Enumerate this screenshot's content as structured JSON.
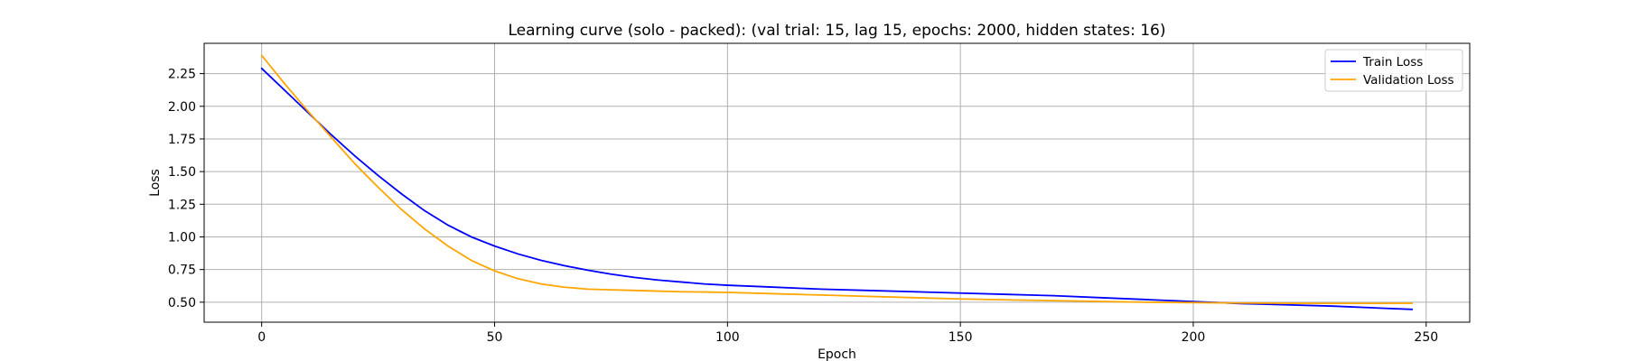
{
  "chart_data": {
    "type": "line",
    "title": "Learning curve (solo - packed): (val trial: 15, lag 15, epochs: 2000, hidden states: 16)",
    "xlabel": "Epoch",
    "ylabel": "Loss",
    "xlim": [
      -12.35,
      259.35
    ],
    "ylim": [
      0.347,
      2.482
    ],
    "xticks": [
      0,
      50,
      100,
      150,
      200,
      250
    ],
    "xtick_labels": [
      "0",
      "50",
      "100",
      "150",
      "200",
      "250"
    ],
    "yticks": [
      0.5,
      0.75,
      1.0,
      1.25,
      1.5,
      1.75,
      2.0,
      2.25
    ],
    "ytick_labels": [
      "0.50",
      "0.75",
      "1.00",
      "1.25",
      "1.50",
      "1.75",
      "2.00",
      "2.25"
    ],
    "grid": true,
    "legend_position": "top-right",
    "series": [
      {
        "name": "Train Loss",
        "color": "#0000ff",
        "x": [
          0,
          5,
          10,
          15,
          20,
          25,
          30,
          35,
          40,
          45,
          50,
          55,
          60,
          65,
          70,
          75,
          80,
          85,
          90,
          95,
          100,
          110,
          120,
          130,
          140,
          150,
          160,
          170,
          180,
          190,
          200,
          210,
          220,
          230,
          240,
          247
        ],
        "y": [
          2.29,
          2.12,
          1.95,
          1.78,
          1.62,
          1.47,
          1.33,
          1.2,
          1.09,
          1.0,
          0.93,
          0.87,
          0.82,
          0.78,
          0.745,
          0.715,
          0.69,
          0.67,
          0.655,
          0.64,
          0.63,
          0.615,
          0.6,
          0.59,
          0.58,
          0.57,
          0.56,
          0.55,
          0.535,
          0.52,
          0.505,
          0.49,
          0.48,
          0.47,
          0.455,
          0.445
        ]
      },
      {
        "name": "Validation Loss",
        "color": "#ffa500",
        "x": [
          0,
          5,
          10,
          15,
          20,
          25,
          30,
          35,
          40,
          45,
          50,
          55,
          60,
          65,
          70,
          75,
          80,
          85,
          90,
          95,
          100,
          110,
          120,
          130,
          140,
          150,
          160,
          170,
          180,
          190,
          200,
          210,
          220,
          230,
          240,
          247
        ],
        "y": [
          2.39,
          2.17,
          1.96,
          1.76,
          1.56,
          1.38,
          1.21,
          1.06,
          0.93,
          0.82,
          0.74,
          0.68,
          0.64,
          0.615,
          0.6,
          0.595,
          0.59,
          0.585,
          0.58,
          0.578,
          0.575,
          0.565,
          0.555,
          0.545,
          0.535,
          0.525,
          0.518,
          0.512,
          0.506,
          0.5,
          0.497,
          0.494,
          0.492,
          0.491,
          0.491,
          0.492
        ]
      }
    ]
  }
}
